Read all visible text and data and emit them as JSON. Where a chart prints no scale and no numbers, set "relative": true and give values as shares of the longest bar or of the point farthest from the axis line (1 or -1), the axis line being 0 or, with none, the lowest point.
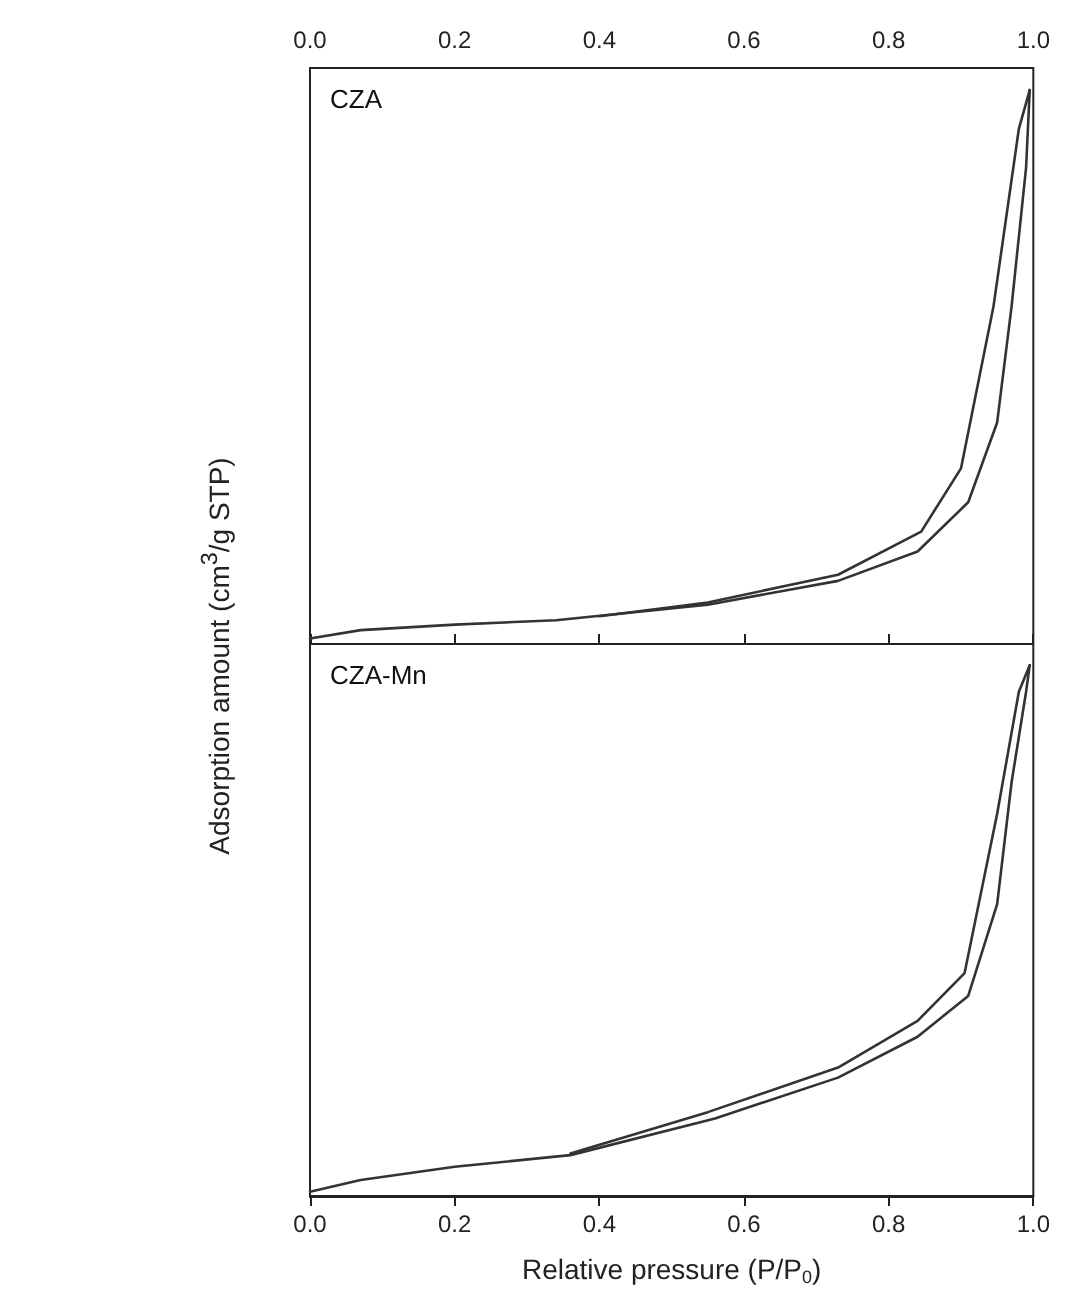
{
  "chart_data": [
    {
      "type": "line",
      "title": "CZA",
      "relative": true,
      "tick_labels": "x",
      "ylabel": "Adsorption amount (cm$^{3}$/g STP)",
      "xlim": [
        0,
        1
      ],
      "xticks": [
        {
          "value": 0,
          "label": "0.0"
        },
        {
          "value": 0.2,
          "label": "0.2"
        },
        {
          "value": 0.4,
          "label": "0.4"
        },
        {
          "value": 0.6,
          "label": "0.6"
        },
        {
          "value": 0.8,
          "label": "0.8"
        },
        {
          "value": 1,
          "label": "1.0"
        }
      ],
      "series": [
        {
          "color": "#333333",
          "x": [
            0,
            0.07,
            0.2,
            0.34,
            0.55,
            0.73,
            0.84,
            0.91,
            0.95,
            0.97,
            0.99,
            0.995
          ],
          "values": [
            0.01,
            0.025,
            0.035,
            0.043,
            0.071,
            0.114,
            0.167,
            0.256,
            0.4,
            0.61,
            0.86,
            1
          ]
        },
        {
          "color": "#333333",
          "x": [
            0.995,
            0.98,
            0.945,
            0.9,
            0.845,
            0.73,
            0.55,
            0.4
          ],
          "values": [
            1,
            0.93,
            0.61,
            0.317,
            0.203,
            0.125,
            0.075,
            0.05
          ]
        }
      ]
    },
    {
      "type": "line",
      "title": "CZA-Mn",
      "relative": true,
      "tick_labels": "x",
      "xlabel": "Relative pressure (P/P$_{0}$)",
      "xlim": [
        0,
        1
      ],
      "xticks": [
        {
          "value": 0,
          "label": "0.0"
        },
        {
          "value": 0.2,
          "label": "0.2"
        },
        {
          "value": 0.4,
          "label": "0.4"
        },
        {
          "value": 0.6,
          "label": "0.6"
        },
        {
          "value": 0.8,
          "label": "0.8"
        },
        {
          "value": 1,
          "label": "1.0"
        }
      ],
      "series": [
        {
          "color": "#333333",
          "x": [
            0,
            0.07,
            0.2,
            0.36,
            0.56,
            0.73,
            0.84,
            0.91,
            0.95,
            0.97,
            0.99,
            0.995
          ],
          "values": [
            0.008,
            0.03,
            0.055,
            0.077,
            0.146,
            0.223,
            0.3,
            0.377,
            0.55,
            0.78,
            0.95,
            1
          ]
        },
        {
          "color": "#333333",
          "x": [
            0.995,
            0.98,
            0.95,
            0.905,
            0.84,
            0.73,
            0.55,
            0.36
          ],
          "values": [
            1,
            0.95,
            0.72,
            0.42,
            0.33,
            0.242,
            0.158,
            0.08
          ]
        }
      ]
    }
  ]
}
